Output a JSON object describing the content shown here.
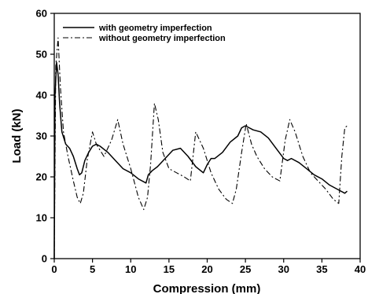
{
  "chart_data": {
    "type": "line",
    "title": "",
    "xlabel": "Compression (mm)",
    "ylabel": "Load (kN)",
    "xlim": [
      0,
      40
    ],
    "ylim": [
      0,
      60
    ],
    "xticks": [
      0,
      5,
      10,
      15,
      20,
      25,
      30,
      35,
      40
    ],
    "yticks": [
      0,
      10,
      20,
      30,
      40,
      50,
      60
    ],
    "grid": false,
    "legend_position": "top-left",
    "series": [
      {
        "name": "with geometry imperfection",
        "style": "solid",
        "color": "#000000",
        "x": [
          0,
          0.1,
          0.3,
          0.5,
          0.7,
          1.0,
          1.5,
          2.0,
          2.5,
          3.0,
          3.3,
          3.6,
          4.0,
          4.5,
          5.0,
          5.5,
          6.0,
          7.0,
          8.0,
          9.0,
          10.0,
          11.0,
          12.0,
          12.3,
          12.8,
          13.5,
          14.5,
          15.5,
          16.5,
          17.5,
          18.5,
          19.5,
          20.0,
          20.5,
          21.0,
          22.0,
          23.0,
          24.0,
          24.5,
          25.0,
          25.5,
          26.0,
          27.0,
          28.0,
          29.0,
          30.0,
          30.5,
          31.0,
          32.0,
          33.0,
          34.0,
          35.0,
          36.0,
          37.0,
          38.0,
          38.3
        ],
        "y": [
          0,
          40,
          48,
          45,
          38,
          31,
          28,
          27,
          25,
          22,
          20.5,
          21,
          24,
          26,
          27.5,
          28,
          27.5,
          26,
          24,
          22,
          21,
          19.5,
          18.5,
          20.5,
          21.5,
          22.5,
          24.5,
          26.5,
          27,
          25,
          22.5,
          21,
          23,
          24.5,
          24.5,
          26,
          28.5,
          30,
          32,
          32.5,
          32,
          31.5,
          31,
          29.5,
          27,
          24.5,
          24,
          24.5,
          23.5,
          22,
          20.5,
          19.5,
          18,
          17,
          16,
          16.5
        ]
      },
      {
        "name": "without geometry imperfection",
        "style": "dash-dot",
        "color": "#000000",
        "x": [
          0,
          0.2,
          0.5,
          0.8,
          1.2,
          1.8,
          2.5,
          3.0,
          3.4,
          3.8,
          4.3,
          5.0,
          5.5,
          6.5,
          7.5,
          8.3,
          9.0,
          10.0,
          11.0,
          11.7,
          12.2,
          12.6,
          13.1,
          13.6,
          14.2,
          15.0,
          16.0,
          17.0,
          17.8,
          18.5,
          19.5,
          20.5,
          21.5,
          22.5,
          23.3,
          23.8,
          24.5,
          25.1,
          25.8,
          26.5,
          27.5,
          28.5,
          29.5,
          30.2,
          30.8,
          31.5,
          32.5,
          33.5,
          34.5,
          35.5,
          36.5,
          37.2,
          37.6,
          38.0,
          38.3
        ],
        "y": [
          0,
          47,
          54,
          42,
          31,
          25,
          19,
          15,
          13.5,
          16,
          24,
          31,
          28,
          25,
          29,
          34,
          28,
          22,
          15,
          12,
          15,
          23,
          38,
          34,
          26,
          22,
          21,
          20,
          19,
          31,
          27,
          21,
          17,
          14.5,
          13.5,
          17,
          26,
          33,
          28,
          25,
          22,
          20,
          19,
          29,
          34,
          31,
          25,
          21,
          19,
          17,
          14.5,
          13.5,
          25,
          32,
          32.5
        ]
      }
    ]
  }
}
